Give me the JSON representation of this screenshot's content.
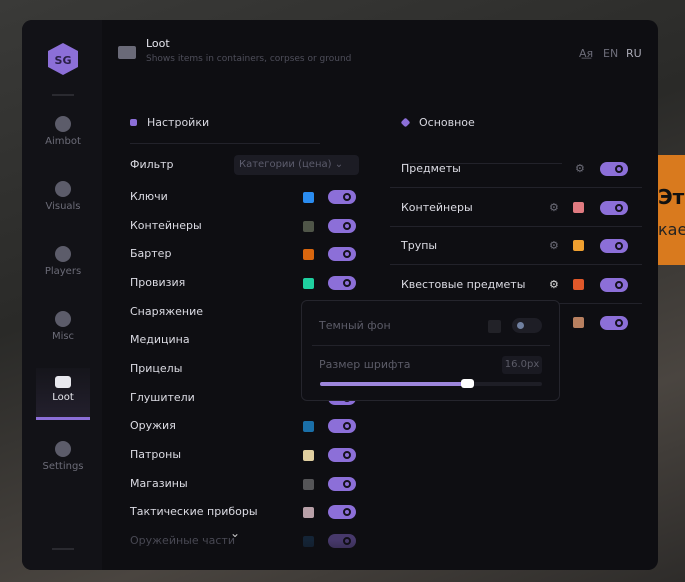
{
  "header": {
    "title": "Loot",
    "subtitle": "Shows items in containers, corpses or ground",
    "lang_en": "EN",
    "lang_ru": "RU"
  },
  "background_text": {
    "line1": "Эт",
    "line2": "кае"
  },
  "sidebar": {
    "items": [
      {
        "label": "Aimbot",
        "icon": "alien-icon"
      },
      {
        "label": "Visuals",
        "icon": "gamepad-icon"
      },
      {
        "label": "Players",
        "icon": "users-icon"
      },
      {
        "label": "Misc",
        "icon": "chat-icon"
      },
      {
        "label": "Loot",
        "icon": "briefcase-icon",
        "active": true
      },
      {
        "label": "Settings",
        "icon": "list-icon"
      }
    ]
  },
  "settings": {
    "title": "Настройки",
    "filter_label": "Фильтр",
    "filter_value": "Категории (цена)",
    "items": [
      {
        "label": "Ключи",
        "color": "#2a8cf0",
        "on": true
      },
      {
        "label": "Контейнеры",
        "color": "#4f5548",
        "on": true
      },
      {
        "label": "Бартер",
        "color": "#d8660e",
        "on": true
      },
      {
        "label": "Провизия",
        "color": "#1fd0a0",
        "on": true
      },
      {
        "label": "Снаряжение",
        "on": true
      },
      {
        "label": "Медицина",
        "on": true
      },
      {
        "label": "Прицелы",
        "on": true
      },
      {
        "label": "Глушители",
        "on": true
      },
      {
        "label": "Оружия",
        "color": "#1a6fa8",
        "on": true
      },
      {
        "label": "Патроны",
        "color": "#e0cfa0",
        "on": true
      },
      {
        "label": "Магазины",
        "color": "#555558",
        "on": true
      },
      {
        "label": "Тактические приборы",
        "color": "#b8a0a8",
        "on": true
      },
      {
        "label": "Оружейные части",
        "color": "#1a3a5a",
        "on": true
      }
    ]
  },
  "main": {
    "title": "Основное",
    "items": [
      {
        "label": "Предметы",
        "on": true
      },
      {
        "label": "Контейнеры",
        "color": "#e07a80",
        "on": true
      },
      {
        "label": "Трупы",
        "color": "#f0a030",
        "on": true
      },
      {
        "label": "Квестовые предметы",
        "color": "#e0582a",
        "on": true
      },
      {
        "label": "",
        "color": "#b88060",
        "on": true
      }
    ]
  },
  "popup": {
    "dark_bg_label": "Темный фон",
    "dark_bg_on": false,
    "font_size_label": "Размер шрифта",
    "font_size_value": "16.0px",
    "font_size_fraction": 0.66
  },
  "accent": "#8c6fd8"
}
